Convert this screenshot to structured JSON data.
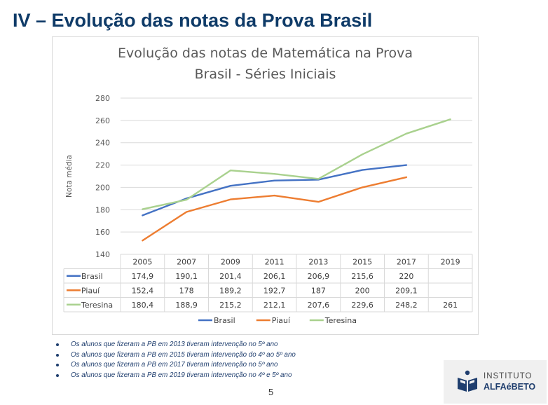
{
  "slide": {
    "title": "IV – Evolução das notas da Prova Brasil",
    "page_number": "5"
  },
  "chart_data": {
    "type": "line",
    "title_line1": "Evolução das notas de Matemática na Prova",
    "title_line2": "Brasil - Séries Iniciais",
    "ylabel": "Nota média",
    "ylim": [
      140,
      280
    ],
    "yticks": [
      140,
      160,
      180,
      200,
      220,
      240,
      260,
      280
    ],
    "categories": [
      "2005",
      "2007",
      "2009",
      "2011",
      "2013",
      "2015",
      "2017",
      "2019"
    ],
    "grid": true,
    "legend_position": "bottom",
    "series": [
      {
        "name": "Brasil",
        "color": "#4472c4",
        "values": [
          174.9,
          190.1,
          201.4,
          206.1,
          206.9,
          215.6,
          220,
          null
        ],
        "labels": [
          "174,9",
          "190,1",
          "201,4",
          "206,1",
          "206,9",
          "215,6",
          "220",
          ""
        ]
      },
      {
        "name": "Piauí",
        "color": "#ed7d31",
        "values": [
          152.4,
          178,
          189.2,
          192.7,
          187,
          200,
          209.1,
          null
        ],
        "labels": [
          "152,4",
          "178",
          "189,2",
          "192,7",
          "187",
          "200",
          "209,1",
          ""
        ]
      },
      {
        "name": "Teresina",
        "color": "#a9d18e",
        "values": [
          180.4,
          188.9,
          215.2,
          212.1,
          207.6,
          229.6,
          248.2,
          261
        ],
        "labels": [
          "180,4",
          "188,9",
          "215,2",
          "212,1",
          "207,6",
          "229,6",
          "248,2",
          "261"
        ]
      }
    ]
  },
  "notes": [
    "Os alunos que fizeram a PB em 2013 tiveram intervenção no 5º ano",
    "Os alunos que fizeram a PB em 2015 tiveram intervenção do 4º ao 5º ano",
    "Os alunos que fizeram a PB em 2017 tiveram intervenção no 5º ano",
    "Os alunos que fizeram a PB em 2019 tiveram intervenção no 4º e 5º ano"
  ],
  "logo": {
    "line1": "INSTITUTO",
    "line2": "ALFAéBETO",
    "icon": "book-hands-icon",
    "color": "#1f3e6e"
  }
}
